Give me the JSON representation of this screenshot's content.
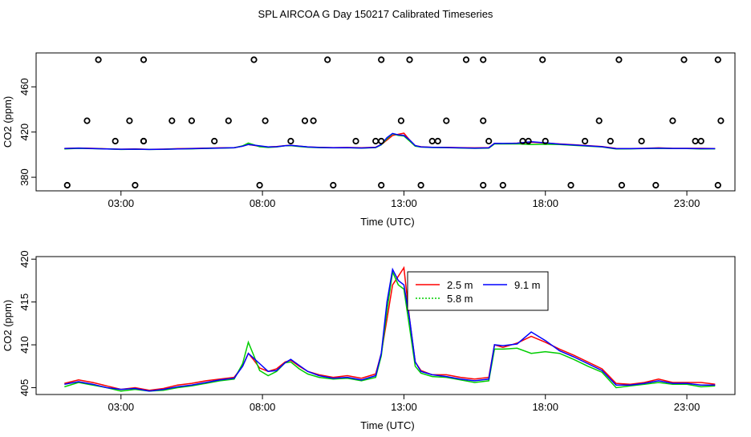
{
  "figure_title": "SPL AIRCOA G  Day 150217  Calibrated Timeseries",
  "chart_data": [
    {
      "type": "line",
      "panel": "top",
      "title": "",
      "xlabel": "Time (UTC)",
      "ylabel": "CO2 (ppm)",
      "xlim": [
        0.0,
        24.7
      ],
      "ylim": [
        368,
        490
      ],
      "xticks": [
        3,
        8,
        13,
        18,
        23
      ],
      "xtick_labels": [
        "03:00",
        "08:00",
        "13:00",
        "18:00",
        "23:00"
      ],
      "yticks": [
        380,
        420,
        460
      ],
      "ytick_labels": [
        "380",
        "420",
        "460"
      ],
      "colors": {
        "2.5 m": "#ff0000",
        "5.8 m": "#00cd00",
        "9.1 m": "#0000ff"
      },
      "series": [
        {
          "name": "2.5 m",
          "color": "#ff0000",
          "x": [
            1,
            1.5,
            2,
            2.5,
            3,
            3.5,
            4,
            4.5,
            5,
            5.5,
            6,
            6.5,
            7,
            7.3,
            7.5,
            7.7,
            7.9,
            8.2,
            8.5,
            8.8,
            9,
            9.3,
            9.6,
            10,
            10.5,
            11,
            11.5,
            12,
            12.2,
            12.4,
            12.6,
            12.8,
            13,
            13.2,
            13.4,
            13.6,
            14,
            14.5,
            15,
            15.5,
            16,
            16.2,
            16.5,
            17,
            17.5,
            18,
            18.5,
            19,
            19.5,
            20,
            20.5,
            21,
            21.5,
            22,
            22.5,
            23,
            23.5,
            24
          ],
          "values": [
            405.5,
            405.9,
            405.6,
            405.2,
            404.8,
            405.0,
            404.7,
            404.9,
            405.3,
            405.5,
            405.8,
            406.0,
            406.2,
            407.5,
            409.0,
            408.2,
            407.3,
            406.9,
            407.2,
            408.0,
            408.2,
            407.5,
            406.9,
            406.5,
            406.2,
            406.4,
            406.1,
            406.6,
            409.0,
            413.0,
            417.0,
            418.0,
            419.0,
            413.0,
            408.0,
            407.0,
            406.5,
            406.5,
            406.2,
            406.0,
            406.2,
            410.0,
            409.7,
            410.2,
            411.0,
            410.3,
            409.5,
            408.8,
            408.0,
            407.2,
            405.5,
            405.4,
            405.6,
            406.0,
            405.6,
            405.6,
            405.6,
            405.4
          ]
        },
        {
          "name": "5.8 m",
          "color": "#00cd00",
          "x": [
            1,
            1.5,
            2,
            2.5,
            3,
            3.5,
            4,
            4.5,
            5,
            5.5,
            6,
            6.5,
            7,
            7.3,
            7.5,
            7.7,
            7.9,
            8.2,
            8.5,
            8.8,
            9,
            9.3,
            9.6,
            10,
            10.5,
            11,
            11.5,
            12,
            12.2,
            12.4,
            12.6,
            12.8,
            13,
            13.2,
            13.4,
            13.6,
            14,
            14.5,
            15,
            15.5,
            16,
            16.2,
            16.5,
            17,
            17.5,
            18,
            18.5,
            19,
            19.5,
            20,
            20.5,
            21,
            21.5,
            22,
            22.5,
            23,
            23.5,
            24
          ],
          "values": [
            405.1,
            405.6,
            405.3,
            405.0,
            404.6,
            404.8,
            404.6,
            404.7,
            405.0,
            405.2,
            405.5,
            405.8,
            406.0,
            407.8,
            410.3,
            408.7,
            407.0,
            406.4,
            406.9,
            407.9,
            408.0,
            407.2,
            406.6,
            406.2,
            406.0,
            406.1,
            405.8,
            406.2,
            408.7,
            414.0,
            418.5,
            417.0,
            416.5,
            412.0,
            407.5,
            406.7,
            406.3,
            406.2,
            405.9,
            405.6,
            405.8,
            409.5,
            409.5,
            409.6,
            409.0,
            409.2,
            409.0,
            408.3,
            407.5,
            406.8,
            405.0,
            405.2,
            405.4,
            405.6,
            405.4,
            405.4,
            405.1,
            405.2
          ]
        },
        {
          "name": "9.1 m",
          "color": "#0000ff",
          "x": [
            1,
            1.5,
            2,
            2.5,
            3,
            3.5,
            4,
            4.5,
            5,
            5.5,
            6,
            6.5,
            7,
            7.3,
            7.5,
            7.7,
            7.9,
            8.2,
            8.5,
            8.8,
            9,
            9.3,
            9.6,
            10,
            10.5,
            11,
            11.5,
            12,
            12.2,
            12.4,
            12.6,
            12.8,
            13,
            13.2,
            13.4,
            13.6,
            14,
            14.5,
            15,
            15.5,
            16,
            16.2,
            16.5,
            17,
            17.5,
            18,
            18.5,
            19,
            19.5,
            20,
            20.5,
            21,
            21.5,
            22,
            22.5,
            23,
            23.5,
            24
          ],
          "values": [
            405.4,
            405.7,
            405.4,
            405.0,
            404.8,
            404.9,
            404.6,
            404.8,
            405.1,
            405.3,
            405.6,
            405.9,
            406.1,
            407.5,
            409.0,
            408.4,
            407.8,
            406.9,
            407.0,
            407.9,
            408.3,
            407.6,
            406.9,
            406.4,
            406.1,
            406.2,
            405.9,
            406.4,
            409.0,
            415.0,
            418.8,
            417.5,
            417.0,
            413.0,
            408.0,
            406.9,
            406.5,
            406.3,
            406.0,
            405.8,
            406.0,
            410.0,
            409.9,
            410.1,
            411.5,
            410.5,
            409.3,
            408.6,
            407.8,
            407.0,
            405.3,
            405.3,
            405.5,
            405.8,
            405.5,
            405.5,
            405.3,
            405.3
          ]
        }
      ],
      "calibration_points": {
        "x": [
          1.1,
          3.5,
          7.9,
          10.5,
          12.2,
          13.6,
          15.8,
          16.5,
          18.9,
          20.7,
          21.9,
          24.1,
          2.8,
          3.8,
          6.3,
          9.0,
          11.3,
          12.2,
          14.2,
          17.2,
          19.4,
          23.3,
          1.8,
          3.3,
          5.5,
          8.1,
          9.5,
          12.9,
          14.5,
          15.8,
          19.9,
          22.5,
          24.2,
          2.2,
          3.8,
          7.7,
          10.3,
          12.2,
          13.2,
          15.2,
          15.8,
          17.9,
          20.6,
          22.9,
          24.1,
          3.8,
          4.8,
          6.8,
          9.8,
          12.0,
          14.0,
          16.0,
          17.4,
          18.0,
          20.3,
          21.4,
          23.5
        ],
        "values": [
          373,
          373,
          373,
          373,
          373,
          373,
          373,
          373,
          373,
          373,
          373,
          373,
          412,
          412,
          412,
          412,
          412,
          412,
          412,
          412,
          412,
          412,
          430,
          430,
          430,
          430,
          430,
          430,
          430,
          430,
          430,
          430,
          430,
          484,
          484,
          484,
          484,
          484,
          484,
          484,
          484,
          484,
          484,
          484,
          484,
          412,
          430,
          430,
          430,
          412,
          412,
          412,
          412,
          412,
          412,
          412,
          412
        ]
      }
    },
    {
      "type": "line",
      "panel": "bottom",
      "title": "",
      "xlabel": "Time (UTC)",
      "ylabel": "CO2 (ppm)",
      "xlim": [
        0.0,
        24.7
      ],
      "ylim": [
        404.2,
        420.3
      ],
      "xticks": [
        3,
        8,
        13,
        18,
        23
      ],
      "xtick_labels": [
        "03:00",
        "08:00",
        "13:00",
        "18:00",
        "23:00"
      ],
      "yticks": [
        405,
        410,
        415,
        420
      ],
      "ytick_labels": [
        "405",
        "410",
        "415",
        "420"
      ],
      "legend": {
        "position": "top-center",
        "entries": [
          "2.5 m",
          "9.1 m",
          "5.8 m"
        ]
      },
      "series_ref": "top panel series (same data)"
    }
  ]
}
